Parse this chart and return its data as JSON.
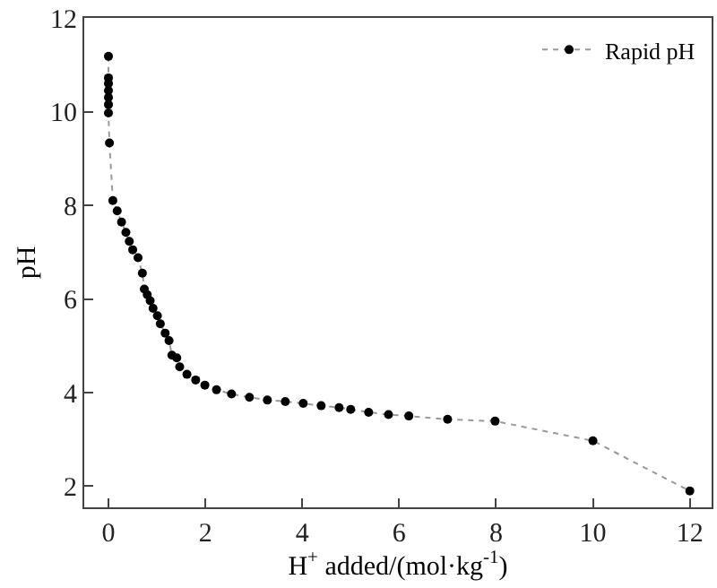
{
  "chart_data": {
    "type": "line",
    "xlabel": "H$^{+}$ added/(mol·kg$^{-1}$)",
    "ylabel": "pH",
    "xlim": [
      -0.5,
      12.45
    ],
    "ylim": [
      1.55,
      12
    ],
    "xticks": [
      0,
      2,
      4,
      6,
      8,
      10,
      12
    ],
    "yticks": [
      2,
      4,
      6,
      8,
      10,
      12
    ],
    "legend": "top right",
    "marker": "circle",
    "line_style": "dotted",
    "series": [
      {
        "name": "Rapid pH",
        "color": "#000000",
        "x": [
          0,
          0,
          0,
          0,
          0,
          0,
          0,
          0.02,
          0.09,
          0.18,
          0.27,
          0.36,
          0.43,
          0.5,
          0.61,
          0.7,
          0.74,
          0.8,
          0.86,
          0.92,
          1.01,
          1.07,
          1.17,
          1.25,
          1.31,
          1.41,
          1.47,
          1.62,
          1.8,
          1.99,
          2.23,
          2.54,
          2.91,
          3.28,
          3.65,
          4.02,
          4.39,
          4.76,
          5.0,
          5.37,
          5.78,
          6.2,
          7.0,
          7.98,
          10.0,
          12.0
        ],
        "values": [
          11.18,
          10.72,
          10.6,
          10.45,
          10.3,
          10.15,
          9.97,
          9.33,
          8.1,
          7.88,
          7.64,
          7.42,
          7.23,
          7.05,
          6.88,
          6.55,
          6.21,
          6.09,
          5.96,
          5.8,
          5.64,
          5.47,
          5.27,
          5.11,
          4.8,
          4.74,
          4.55,
          4.39,
          4.27,
          4.16,
          4.06,
          3.97,
          3.9,
          3.84,
          3.81,
          3.77,
          3.72,
          3.68,
          3.64,
          3.58,
          3.53,
          3.5,
          3.43,
          3.39,
          2.97,
          1.9
        ]
      }
    ]
  }
}
